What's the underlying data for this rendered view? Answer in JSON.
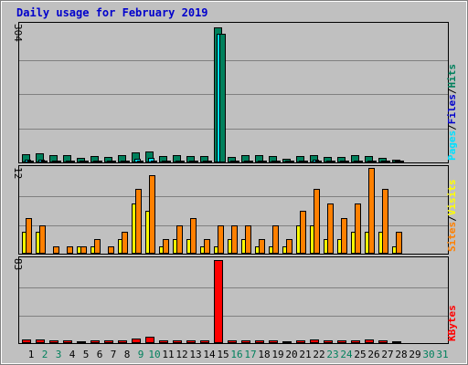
{
  "title": "Daily usage for February 2019",
  "colors": {
    "hits": "#00805c",
    "files": "#00e0ff",
    "pages": "#00805c",
    "visits": "#ffff00",
    "sites": "#ff8000",
    "kbytes": "#ff0000",
    "weekday": "#000000",
    "weekend": "#00805c",
    "title": "#0000cc",
    "sep": "#000000"
  },
  "chart_data": [
    {
      "type": "bar",
      "panel": "hits-files-pages",
      "ymax_label": "304",
      "ylim": [
        0,
        304
      ],
      "legend": [
        {
          "name": "Pages",
          "color": "#00e0ff"
        },
        {
          "name": "/",
          "color": "#000000"
        },
        {
          "name": "Files",
          "color": "#0000cc"
        },
        {
          "name": "/",
          "color": "#000000"
        },
        {
          "name": "Hits",
          "color": "#00805c"
        }
      ],
      "categories": [
        "1",
        "2",
        "3",
        "4",
        "5",
        "6",
        "7",
        "8",
        "9",
        "10",
        "11",
        "12",
        "13",
        "14",
        "15",
        "16",
        "17",
        "18",
        "19",
        "20",
        "21",
        "22",
        "23",
        "24",
        "25",
        "26",
        "27",
        "28",
        "29",
        "30",
        "31"
      ],
      "series": [
        {
          "name": "Hits",
          "values": [
            19,
            21,
            16,
            16,
            10,
            14,
            13,
            16,
            23,
            25,
            15,
            16,
            15,
            15,
            300,
            12,
            16,
            16,
            14,
            9,
            14,
            17,
            13,
            12,
            16,
            15,
            11,
            6,
            0,
            0,
            0
          ]
        },
        {
          "name": "Files",
          "values": [
            6,
            6,
            2,
            4,
            2,
            5,
            4,
            5,
            8,
            10,
            4,
            4,
            4,
            4,
            285,
            4,
            4,
            4,
            4,
            2,
            5,
            6,
            4,
            3,
            4,
            5,
            4,
            2,
            0,
            0,
            0
          ]
        },
        {
          "name": "Pages",
          "values": [
            3,
            3,
            1,
            2,
            1,
            2,
            2,
            2,
            4,
            5,
            2,
            2,
            2,
            2,
            285,
            2,
            2,
            2,
            2,
            1,
            3,
            3,
            2,
            2,
            2,
            3,
            2,
            1,
            0,
            0,
            0
          ]
        }
      ]
    },
    {
      "type": "bar",
      "panel": "visits-sites",
      "ymax_label": "12",
      "ylim": [
        0,
        12
      ],
      "legend": [
        {
          "name": "Sites",
          "color": "#ff8000"
        },
        {
          "name": "/",
          "color": "#000000"
        },
        {
          "name": "Visits",
          "color": "#ffff00"
        }
      ],
      "categories": [
        "1",
        "2",
        "3",
        "4",
        "5",
        "6",
        "7",
        "8",
        "9",
        "10",
        "11",
        "12",
        "13",
        "14",
        "15",
        "16",
        "17",
        "18",
        "19",
        "20",
        "21",
        "22",
        "23",
        "24",
        "25",
        "26",
        "27",
        "28",
        "29",
        "30",
        "31"
      ],
      "series": [
        {
          "name": "Visits",
          "values": [
            3,
            3,
            0,
            0,
            1,
            1,
            0,
            2,
            7,
            6,
            1,
            2,
            2,
            1,
            1,
            2,
            2,
            1,
            1,
            1,
            4,
            4,
            2,
            2,
            3,
            3,
            3,
            1,
            0,
            0,
            0
          ]
        },
        {
          "name": "Sites",
          "values": [
            5,
            4,
            1,
            1,
            1,
            2,
            1,
            3,
            9,
            11,
            2,
            4,
            5,
            2,
            4,
            4,
            4,
            2,
            4,
            2,
            6,
            9,
            7,
            5,
            7,
            12,
            9,
            3,
            0,
            0,
            0
          ]
        }
      ]
    },
    {
      "type": "bar",
      "panel": "kbytes",
      "ymax_label": "83",
      "ylim": [
        0,
        83
      ],
      "legend": [
        {
          "name": "KBytes",
          "color": "#ff0000"
        }
      ],
      "categories": [
        "1",
        "2",
        "3",
        "4",
        "5",
        "6",
        "7",
        "8",
        "9",
        "10",
        "11",
        "12",
        "13",
        "14",
        "15",
        "16",
        "17",
        "18",
        "19",
        "20",
        "21",
        "22",
        "23",
        "24",
        "25",
        "26",
        "27",
        "28",
        "29",
        "30",
        "31"
      ],
      "series": [
        {
          "name": "KBytes",
          "values": [
            4,
            4,
            3,
            3,
            2,
            3,
            3,
            3,
            5,
            6,
            3,
            3,
            3,
            3,
            83,
            3,
            3,
            3,
            3,
            2,
            3,
            4,
            3,
            3,
            3,
            4,
            3,
            1,
            0,
            0,
            0
          ]
        }
      ]
    }
  ],
  "x_labels": [
    {
      "text": "1",
      "weekend": false
    },
    {
      "text": "2",
      "weekend": true
    },
    {
      "text": "3",
      "weekend": true
    },
    {
      "text": "4",
      "weekend": false
    },
    {
      "text": "5",
      "weekend": false
    },
    {
      "text": "6",
      "weekend": false
    },
    {
      "text": "7",
      "weekend": false
    },
    {
      "text": "8",
      "weekend": false
    },
    {
      "text": "9",
      "weekend": true
    },
    {
      "text": "10",
      "weekend": true
    },
    {
      "text": "11",
      "weekend": false
    },
    {
      "text": "12",
      "weekend": false
    },
    {
      "text": "13",
      "weekend": false
    },
    {
      "text": "14",
      "weekend": false
    },
    {
      "text": "15",
      "weekend": false
    },
    {
      "text": "16",
      "weekend": true
    },
    {
      "text": "17",
      "weekend": true
    },
    {
      "text": "18",
      "weekend": false
    },
    {
      "text": "19",
      "weekend": false
    },
    {
      "text": "20",
      "weekend": false
    },
    {
      "text": "21",
      "weekend": false
    },
    {
      "text": "22",
      "weekend": false
    },
    {
      "text": "23",
      "weekend": true
    },
    {
      "text": "24",
      "weekend": true
    },
    {
      "text": "25",
      "weekend": false
    },
    {
      "text": "26",
      "weekend": false
    },
    {
      "text": "27",
      "weekend": false
    },
    {
      "text": "28",
      "weekend": false
    },
    {
      "text": "29",
      "weekend": false
    },
    {
      "text": "30",
      "weekend": true
    },
    {
      "text": "31",
      "weekend": true
    }
  ]
}
